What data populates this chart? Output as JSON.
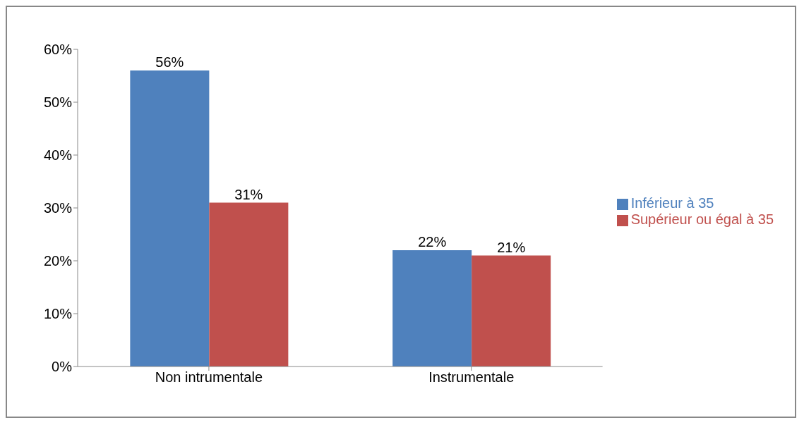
{
  "chart_data": {
    "type": "bar",
    "categories": [
      "Non intrumentale",
      "Instrumentale"
    ],
    "series": [
      {
        "name": "Inférieur à 35",
        "color": "#4f81bd",
        "values": [
          56,
          22
        ],
        "value_labels": [
          "56%",
          "22%"
        ]
      },
      {
        "name": "Supérieur ou égal à 35",
        "color": "#c0504d",
        "values": [
          31,
          21
        ],
        "value_labels": [
          "31%",
          "21%"
        ]
      }
    ],
    "ylim": [
      0,
      60
    ],
    "yticks": [
      {
        "value": 0,
        "label": "0%"
      },
      {
        "value": 10,
        "label": "10%"
      },
      {
        "value": 20,
        "label": "20%"
      },
      {
        "value": 30,
        "label": "30%"
      },
      {
        "value": 40,
        "label": "40%"
      },
      {
        "value": 50,
        "label": "50%"
      },
      {
        "value": 60,
        "label": "60%"
      }
    ],
    "grid": false,
    "legend": "right"
  }
}
